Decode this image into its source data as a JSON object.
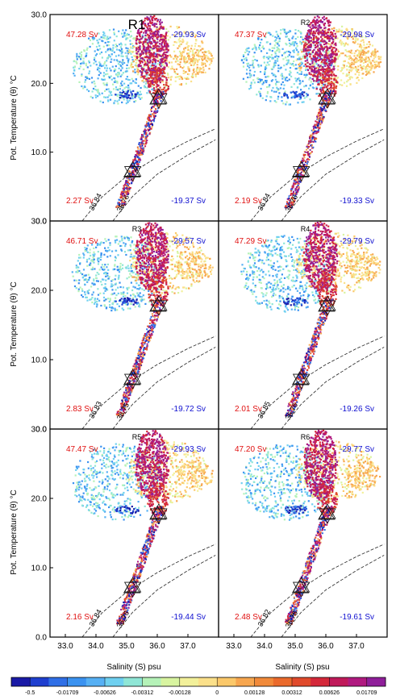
{
  "chart_data": {
    "type": "scatter",
    "xlabel": "Salinity (S) psu",
    "ylabel": "Pot. Temperature (θ) °C",
    "xlim": [
      32.5,
      38.0
    ],
    "ylim": [
      0.0,
      30.0
    ],
    "xticks": [
      "33.0",
      "34.0",
      "35.0",
      "36.0",
      "37.0"
    ],
    "xtick_values": [
      33.0,
      34.0,
      35.0,
      36.0,
      37.0
    ],
    "yticks": [
      "0.0",
      "10.0",
      "20.0",
      "30.0"
    ],
    "ytick_values": [
      0.0,
      10.0,
      20.0,
      30.0
    ],
    "grid": false,
    "colorbar": {
      "labels": [
        "-0.5",
        "-0.01709",
        "-0.00626",
        "-0.00312",
        "-0.00128",
        "0",
        "0.00128",
        "0.00312",
        "0.00626",
        "0.01709",
        "0.5"
      ],
      "colors": [
        "#1a1aa6",
        "#1f3fcf",
        "#2f6fe6",
        "#3b92f0",
        "#56b0f4",
        "#6fd0f0",
        "#8fe6d6",
        "#b5f2b8",
        "#d8f4a0",
        "#f2f09a",
        "#fbe08a",
        "#fbc86a",
        "#f7a64f",
        "#f18a3a",
        "#ea6a2c",
        "#e04a2c",
        "#d4283a",
        "#c01a5a",
        "#b01a80",
        "#8f1f9a"
      ]
    },
    "panels": [
      {
        "label": "R1",
        "top_left": "47.28 Sv",
        "top_right": "-29.93 Sv",
        "bottom_left": "2.27 Sv",
        "bottom_right": "-19.37 Sv",
        "density_labels": [
          "36.84",
          "36.76"
        ]
      },
      {
        "label": "R2",
        "top_left": "47.37 Sv",
        "top_right": "-29.98 Sv",
        "bottom_left": "2.19 Sv",
        "bottom_right": "-19.33 Sv",
        "density_labels": [
          "36.84",
          "36.76"
        ]
      },
      {
        "label": "R3",
        "top_left": "46.71 Sv",
        "top_right": "-29.57 Sv",
        "bottom_left": "2.83 Sv",
        "bottom_right": "-19.72 Sv",
        "density_labels": [
          "36.83",
          "36.75"
        ]
      },
      {
        "label": "R4",
        "top_left": "47.29 Sv",
        "top_right": "-29.79 Sv",
        "bottom_left": "2.01 Sv",
        "bottom_right": "-19.26 Sv",
        "density_labels": [
          "36.85",
          "36.76"
        ]
      },
      {
        "label": "R5",
        "top_left": "47.47 Sv",
        "top_right": "-29.93 Sv",
        "bottom_left": "2.16 Sv",
        "bottom_right": "-19.44 Sv",
        "density_labels": [
          "36.84",
          "36.76"
        ]
      },
      {
        "label": "R6",
        "top_left": "47.20 Sv",
        "top_right": "-29.77 Sv",
        "bottom_left": "2.48 Sv",
        "bottom_right": "-19.61 Sv",
        "density_labels": [
          "36.82",
          "36.76"
        ]
      }
    ],
    "density_contours": [
      {
        "points": [
          [
            33.55,
            0.0
          ],
          [
            34.2,
            3.5
          ],
          [
            35.0,
            6.5
          ],
          [
            36.0,
            9.3
          ],
          [
            37.0,
            11.6
          ],
          [
            37.9,
            13.4
          ]
        ]
      },
      {
        "points": [
          [
            34.55,
            0.0
          ],
          [
            35.2,
            3.6
          ],
          [
            36.0,
            6.8
          ],
          [
            37.0,
            9.6
          ],
          [
            37.9,
            11.8
          ]
        ]
      }
    ],
    "markers": [
      {
        "s": 35.2,
        "t": 7.2
      },
      {
        "s": 36.05,
        "t": 17.8
      }
    ]
  }
}
